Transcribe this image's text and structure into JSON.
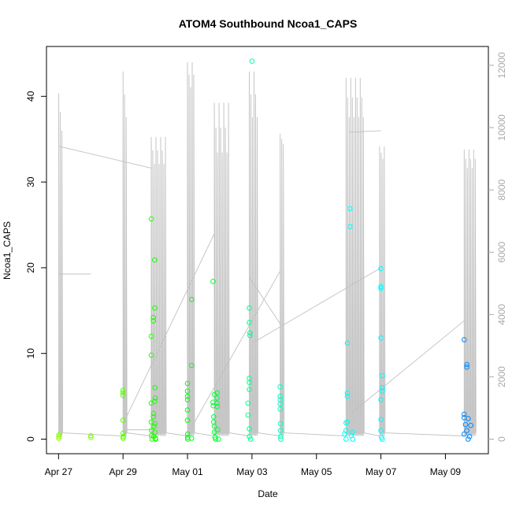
{
  "chart_data": {
    "type": "scatter",
    "title": "ATOM4 Southbound Ncoa1_CAPS",
    "xlabel": "Date",
    "ylabel": "Ncoa1_CAPS",
    "x_tick_labels": [
      "Apr 27",
      "Apr 29",
      "May 01",
      "May 03",
      "May 05",
      "May 07",
      "May 09"
    ],
    "x_tick_dates": [
      "2023-04-27",
      "2023-04-29",
      "2023-05-01",
      "2023-05-03",
      "2023-05-05",
      "2023-05-07",
      "2023-05-09"
    ],
    "xlim": [
      "2023-04-26T15:00",
      "2023-05-10T08:00"
    ],
    "ylim": [
      0,
      44
    ],
    "y_ticks": [
      0,
      10,
      20,
      30,
      40
    ],
    "y2_ticks": [
      0,
      2000,
      4000,
      6000,
      8000,
      10000,
      12000
    ],
    "y2lim": [
      0,
      12000
    ],
    "secondary_line_color": "#c0c0c0",
    "point_style": "open-circle",
    "point_color_gradient": [
      "#7fff00",
      "#00ff00",
      "#00ffa0",
      "#00ffff",
      "#0080ff"
    ],
    "series": [
      {
        "values": [
          {
            "x": "2023-04-27T00:10",
            "y": 0.1,
            "c": "#8cff00"
          },
          {
            "x": "2023-04-27T00:15",
            "y": 0.3,
            "c": "#8cff00"
          },
          {
            "x": "2023-04-27T00:20",
            "y": 0.5,
            "c": "#8cff00"
          },
          {
            "x": "2023-04-28T00:00",
            "y": 0.2,
            "c": "#80ff00"
          },
          {
            "x": "2023-04-28T00:05",
            "y": 0.4,
            "c": "#80ff00"
          },
          {
            "x": "2023-04-29T00:00",
            "y": 5.7,
            "c": "#55ff00"
          },
          {
            "x": "2023-04-29T00:00",
            "y": 5.4,
            "c": "#55ff00"
          },
          {
            "x": "2023-04-29T00:00",
            "y": 5.1,
            "c": "#55ff00"
          },
          {
            "x": "2023-04-29T00:00",
            "y": 2.2,
            "c": "#55ff00"
          },
          {
            "x": "2023-04-29T00:05",
            "y": 0.7,
            "c": "#55ff00"
          },
          {
            "x": "2023-04-29T00:05",
            "y": 0.1,
            "c": "#55ff00"
          },
          {
            "x": "2023-04-29T00:10",
            "y": 0.3,
            "c": "#55ff00"
          },
          {
            "x": "2023-04-29T21:00",
            "y": 25.7,
            "c": "#22ff00"
          },
          {
            "x": "2023-04-29T21:00",
            "y": 12.0,
            "c": "#22ff00"
          },
          {
            "x": "2023-04-29T21:00",
            "y": 9.8,
            "c": "#22ff00"
          },
          {
            "x": "2023-04-29T21:00",
            "y": 4.2,
            "c": "#22ff00"
          },
          {
            "x": "2023-04-29T21:00",
            "y": 2.0,
            "c": "#22ff00"
          },
          {
            "x": "2023-04-29T21:10",
            "y": 1.0,
            "c": "#22ff00"
          },
          {
            "x": "2023-04-29T21:10",
            "y": 0.4,
            "c": "#22ff00"
          },
          {
            "x": "2023-04-29T21:30",
            "y": 0.0,
            "c": "#22ff00"
          },
          {
            "x": "2023-04-29T22:30",
            "y": 14.2,
            "c": "#1eff00"
          },
          {
            "x": "2023-04-29T22:30",
            "y": 13.8,
            "c": "#1eff00"
          },
          {
            "x": "2023-04-29T22:40",
            "y": 3.0,
            "c": "#1eff00"
          },
          {
            "x": "2023-04-29T22:40",
            "y": 2.6,
            "c": "#1eff00"
          },
          {
            "x": "2023-04-29T23:00",
            "y": 1.5,
            "c": "#1eff00"
          },
          {
            "x": "2023-04-29T23:00",
            "y": 0.3,
            "c": "#1eff00"
          },
          {
            "x": "2023-04-29T23:30",
            "y": 20.9,
            "c": "#18ff00"
          },
          {
            "x": "2023-04-29T23:30",
            "y": 15.3,
            "c": "#18ff00"
          },
          {
            "x": "2023-04-29T23:30",
            "y": 4.4,
            "c": "#18ff00"
          },
          {
            "x": "2023-04-29T23:40",
            "y": 6.0,
            "c": "#18ff00"
          },
          {
            "x": "2023-04-29T23:40",
            "y": 1.8,
            "c": "#18ff00"
          },
          {
            "x": "2023-04-29T23:50",
            "y": 0.8,
            "c": "#18ff00"
          },
          {
            "x": "2023-04-30T00:10",
            "y": 0.1,
            "c": "#18ff00"
          },
          {
            "x": "2023-04-30T00:20",
            "y": 0.0,
            "c": "#18ff00"
          },
          {
            "x": "2023-04-30T00:00",
            "y": 4.8,
            "c": "#18ff00"
          },
          {
            "x": "2023-05-01T00:00",
            "y": 6.5,
            "c": "#00ff10"
          },
          {
            "x": "2023-05-01T00:00",
            "y": 5.6,
            "c": "#00ff10"
          },
          {
            "x": "2023-05-01T00:00",
            "y": 5.0,
            "c": "#00ff10"
          },
          {
            "x": "2023-05-01T00:00",
            "y": 4.6,
            "c": "#00ff10"
          },
          {
            "x": "2023-05-01T00:00",
            "y": 3.4,
            "c": "#00ff10"
          },
          {
            "x": "2023-05-01T00:00",
            "y": 2.2,
            "c": "#00ff10"
          },
          {
            "x": "2023-05-01T00:05",
            "y": 0.6,
            "c": "#00ff10"
          },
          {
            "x": "2023-05-01T00:05",
            "y": 0.2,
            "c": "#00ff10"
          },
          {
            "x": "2023-05-01T00:10",
            "y": 0.0,
            "c": "#00ff10"
          },
          {
            "x": "2023-05-01T03:00",
            "y": 16.3,
            "c": "#00ff18"
          },
          {
            "x": "2023-05-01T03:00",
            "y": 8.6,
            "c": "#00ff18"
          },
          {
            "x": "2023-05-01T03:00",
            "y": 0.1,
            "c": "#00ff18"
          },
          {
            "x": "2023-05-01T19:00",
            "y": 18.4,
            "c": "#00ff30"
          },
          {
            "x": "2023-05-01T19:00",
            "y": 4.3,
            "c": "#00ff30"
          },
          {
            "x": "2023-05-01T19:10",
            "y": 3.9,
            "c": "#00ff30"
          },
          {
            "x": "2023-05-01T19:30",
            "y": 2.6,
            "c": "#00ff30"
          },
          {
            "x": "2023-05-01T19:30",
            "y": 2.0,
            "c": "#00ff30"
          },
          {
            "x": "2023-05-01T20:00",
            "y": 5.2,
            "c": "#00ff30"
          },
          {
            "x": "2023-05-01T20:00",
            "y": 1.5,
            "c": "#00ff30"
          },
          {
            "x": "2023-05-01T20:00",
            "y": 0.8,
            "c": "#00ff30"
          },
          {
            "x": "2023-05-01T20:30",
            "y": 0.2,
            "c": "#00ff30"
          },
          {
            "x": "2023-05-01T21:00",
            "y": 0.0,
            "c": "#00ff30"
          },
          {
            "x": "2023-05-01T22:00",
            "y": 5.4,
            "c": "#00ff38"
          },
          {
            "x": "2023-05-01T22:00",
            "y": 4.8,
            "c": "#00ff38"
          },
          {
            "x": "2023-05-01T22:00",
            "y": 4.2,
            "c": "#00ff38"
          },
          {
            "x": "2023-05-01T22:10",
            "y": 3.8,
            "c": "#00ff38"
          },
          {
            "x": "2023-05-01T22:30",
            "y": 1.1,
            "c": "#00ff38"
          },
          {
            "x": "2023-05-01T23:00",
            "y": 0.0,
            "c": "#00ff38"
          },
          {
            "x": "2023-05-03T00:00",
            "y": 44.1,
            "c": "#00ffa8"
          },
          {
            "x": "2023-05-02T22:00",
            "y": 15.3,
            "c": "#00ff90"
          },
          {
            "x": "2023-05-02T22:00",
            "y": 13.6,
            "c": "#00ff90"
          },
          {
            "x": "2023-05-02T22:30",
            "y": 12.4,
            "c": "#00ff90"
          },
          {
            "x": "2023-05-02T22:30",
            "y": 12.1,
            "c": "#00ff90"
          },
          {
            "x": "2023-05-02T22:00",
            "y": 7.1,
            "c": "#00ff90"
          },
          {
            "x": "2023-05-02T22:00",
            "y": 6.6,
            "c": "#00ff90"
          },
          {
            "x": "2023-05-02T22:00",
            "y": 5.8,
            "c": "#00ff90"
          },
          {
            "x": "2023-05-02T21:00",
            "y": 4.2,
            "c": "#00ff90"
          },
          {
            "x": "2023-05-02T21:00",
            "y": 2.8,
            "c": "#00ff90"
          },
          {
            "x": "2023-05-02T22:00",
            "y": 1.2,
            "c": "#00ff90"
          },
          {
            "x": "2023-05-02T22:00",
            "y": 0.3,
            "c": "#00ff90"
          },
          {
            "x": "2023-05-02T23:00",
            "y": 0.0,
            "c": "#00ff90"
          },
          {
            "x": "2023-05-03T21:00",
            "y": 6.1,
            "c": "#00ffc0"
          },
          {
            "x": "2023-05-03T21:00",
            "y": 5.0,
            "c": "#00ffc0"
          },
          {
            "x": "2023-05-03T21:00",
            "y": 4.6,
            "c": "#00ffc0"
          },
          {
            "x": "2023-05-03T21:00",
            "y": 4.1,
            "c": "#00ffc0"
          },
          {
            "x": "2023-05-03T21:00",
            "y": 3.5,
            "c": "#00ffc0"
          },
          {
            "x": "2023-05-03T21:10",
            "y": 1.8,
            "c": "#00ffc0"
          },
          {
            "x": "2023-05-03T21:10",
            "y": 1.0,
            "c": "#00ffc0"
          },
          {
            "x": "2023-05-03T21:20",
            "y": 0.3,
            "c": "#00ffc0"
          },
          {
            "x": "2023-05-03T21:30",
            "y": 0.0,
            "c": "#00ffc0"
          },
          {
            "x": "2023-05-06T01:00",
            "y": 26.9,
            "c": "#00ffff"
          },
          {
            "x": "2023-05-06T01:00",
            "y": 24.8,
            "c": "#00ffff"
          },
          {
            "x": "2023-05-05T23:00",
            "y": 11.2,
            "c": "#00fff0"
          },
          {
            "x": "2023-05-05T23:00",
            "y": 5.4,
            "c": "#00fff0"
          },
          {
            "x": "2023-05-05T23:00",
            "y": 5.0,
            "c": "#00fff0"
          },
          {
            "x": "2023-05-05T23:00",
            "y": 2.0,
            "c": "#00fff0"
          },
          {
            "x": "2023-05-05T22:00",
            "y": 1.9,
            "c": "#00fff0"
          },
          {
            "x": "2023-05-05T22:00",
            "y": 1.0,
            "c": "#00fff0"
          },
          {
            "x": "2023-05-05T21:00",
            "y": 0.6,
            "c": "#00fff0"
          },
          {
            "x": "2023-05-06T02:00",
            "y": 0.4,
            "c": "#00ffff"
          },
          {
            "x": "2023-05-06T03:00",
            "y": 0.8,
            "c": "#00ffff"
          },
          {
            "x": "2023-05-06T03:00",
            "y": 0.0,
            "c": "#00ffff"
          },
          {
            "x": "2023-05-05T22:00",
            "y": 0.0,
            "c": "#00fff0"
          },
          {
            "x": "2023-05-07T00:00",
            "y": 19.9,
            "c": "#00f8ff"
          },
          {
            "x": "2023-05-07T00:00",
            "y": 17.8,
            "c": "#00f8ff"
          },
          {
            "x": "2023-05-07T00:00",
            "y": 17.6,
            "c": "#00f8ff"
          },
          {
            "x": "2023-05-07T00:00",
            "y": 11.8,
            "c": "#00f8ff"
          },
          {
            "x": "2023-05-07T01:00",
            "y": 7.4,
            "c": "#00f8ff"
          },
          {
            "x": "2023-05-07T01:00",
            "y": 6.0,
            "c": "#00f8ff"
          },
          {
            "x": "2023-05-07T01:00",
            "y": 5.6,
            "c": "#00f8ff"
          },
          {
            "x": "2023-05-07T00:00",
            "y": 4.6,
            "c": "#00f8ff"
          },
          {
            "x": "2023-05-07T00:00",
            "y": 2.3,
            "c": "#00f8ff"
          },
          {
            "x": "2023-05-07T00:00",
            "y": 1.0,
            "c": "#00f8ff"
          },
          {
            "x": "2023-05-07T00:30",
            "y": 0.2,
            "c": "#00f8ff"
          },
          {
            "x": "2023-05-07T01:00",
            "y": 0.0,
            "c": "#00f8ff"
          },
          {
            "x": "2023-05-09T14:00",
            "y": 11.6,
            "c": "#0088ff"
          },
          {
            "x": "2023-05-09T16:00",
            "y": 8.7,
            "c": "#0088ff"
          },
          {
            "x": "2023-05-09T16:00",
            "y": 8.4,
            "c": "#0088ff"
          },
          {
            "x": "2023-05-09T14:00",
            "y": 2.9,
            "c": "#0088ff"
          },
          {
            "x": "2023-05-09T14:00",
            "y": 2.5,
            "c": "#0088ff"
          },
          {
            "x": "2023-05-09T17:00",
            "y": 2.4,
            "c": "#0088ff"
          },
          {
            "x": "2023-05-09T15:00",
            "y": 1.7,
            "c": "#0088ff"
          },
          {
            "x": "2023-05-09T19:00",
            "y": 1.6,
            "c": "#0088ff"
          },
          {
            "x": "2023-05-09T16:00",
            "y": 1.0,
            "c": "#0088ff"
          },
          {
            "x": "2023-05-09T14:00",
            "y": 0.6,
            "c": "#0088ff"
          },
          {
            "x": "2023-05-09T18:00",
            "y": 0.3,
            "c": "#0088ff"
          },
          {
            "x": "2023-05-09T17:00",
            "y": 0.0,
            "c": "#0088ff"
          }
        ]
      }
    ]
  }
}
